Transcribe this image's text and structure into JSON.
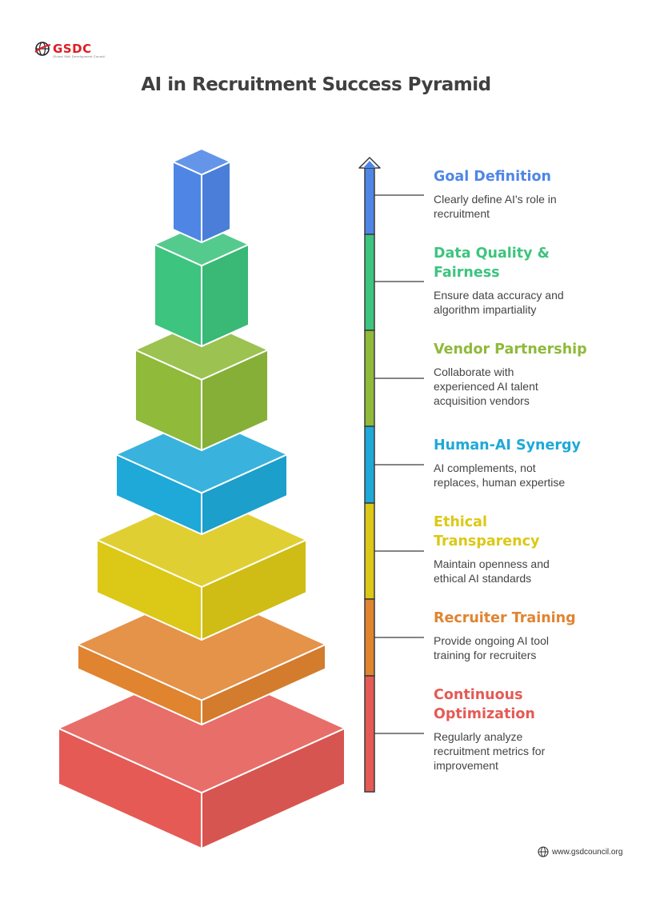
{
  "brand": {
    "name": "GSDC",
    "tagline": "Global Skill Development Council"
  },
  "title": "AI in Recruitment Success Pyramid",
  "footer": {
    "url": "www.gsdcouncil.org"
  },
  "levels": [
    {
      "title": "Goal Definition",
      "description": "Clearly define AI's role in recruitment",
      "color": "#4f86e6"
    },
    {
      "title": "Data Quality & Fairness",
      "description": "Ensure data accuracy and algorithm impartiality",
      "color": "#3dc47e"
    },
    {
      "title": "Vendor Partnership",
      "description": "Collaborate with experienced AI talent acquisition vendors",
      "color": "#8fba3a"
    },
    {
      "title": "Human-AI Synergy",
      "description": "AI complements, not replaces, human expertise",
      "color": "#1ea9d8"
    },
    {
      "title": "Ethical Transparency",
      "description": "Maintain openness and ethical AI standards",
      "color": "#dcc816"
    },
    {
      "title": "Recruiter Training",
      "description": "Provide ongoing AI tool training for recruiters",
      "color": "#e08430"
    },
    {
      "title": "Continuous Optimization",
      "description": "Regularly analyze recruitment metrics for improvement",
      "color": "#e55a55"
    }
  ]
}
